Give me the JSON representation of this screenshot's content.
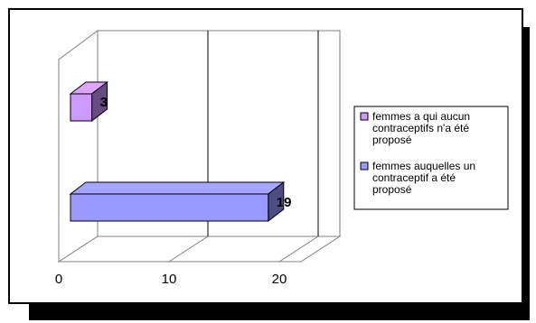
{
  "chart_data": {
    "type": "bar",
    "orientation": "horizontal",
    "three_d": true,
    "series": [
      {
        "name": "femmes a qui aucun contraceptifs n'a été proposé",
        "legend_lines": [
          "femmes a qui aucun",
          "contraceptifs n'a été",
          "proposé"
        ],
        "value": 3,
        "color": "#cc99ff"
      },
      {
        "name": "femmes auquelles un contraceptif a été proposé",
        "legend_lines": [
          "femmes auquelles un",
          "contraceptif a été",
          "proposé"
        ],
        "value": 19,
        "color": "#9999ff"
      }
    ],
    "xlim": [
      0,
      20
    ],
    "x_ticks": [
      0,
      10,
      20
    ],
    "grid": true,
    "legend_position": "right"
  }
}
